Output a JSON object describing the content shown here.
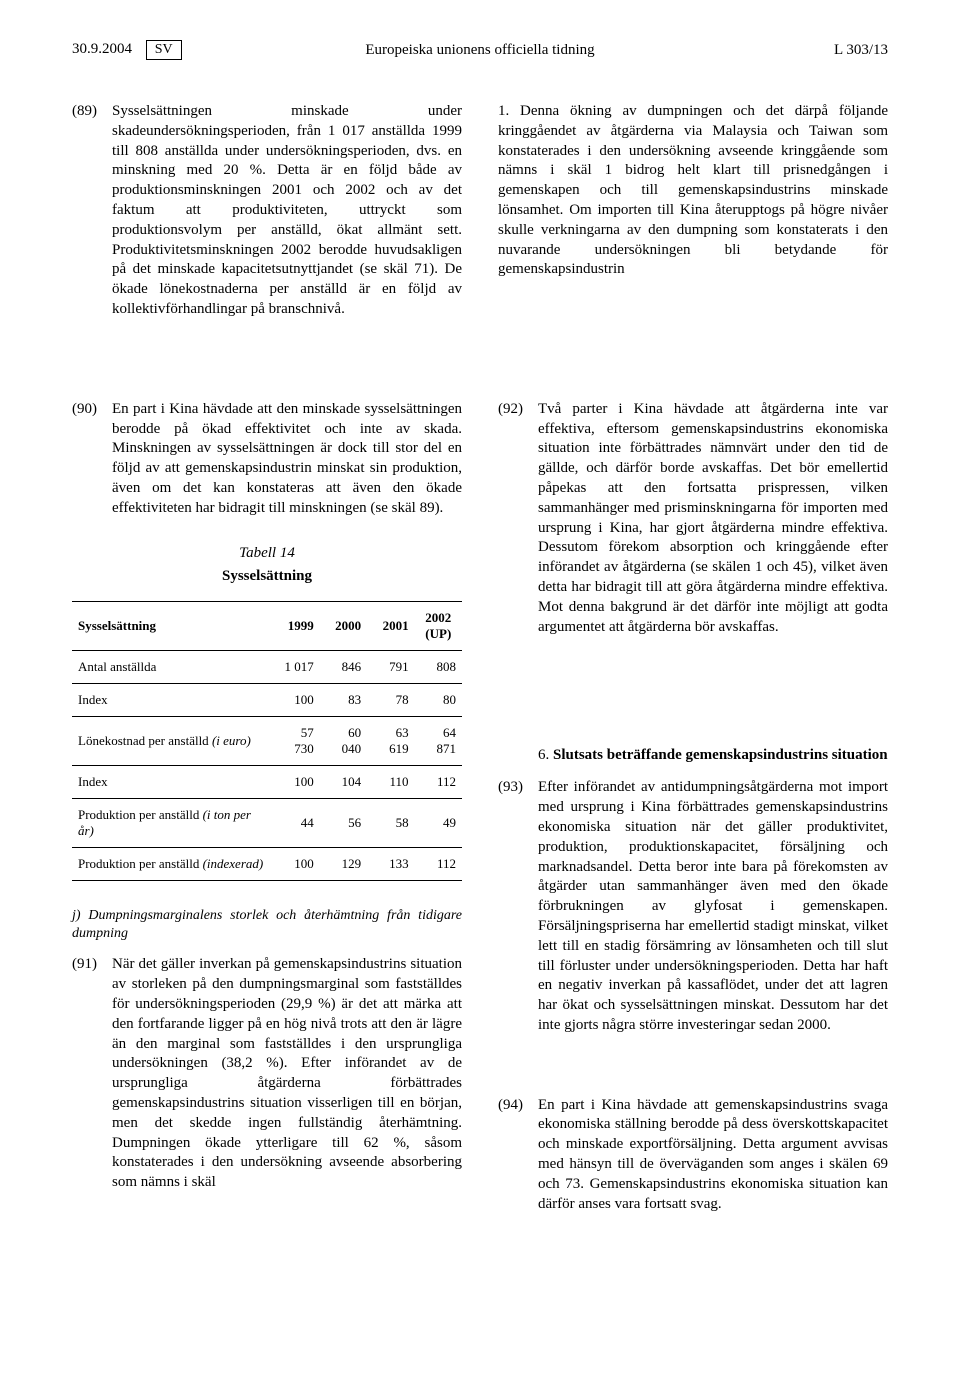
{
  "header": {
    "date": "30.9.2004",
    "lang": "SV",
    "center": "Europeiska unionens officiella tidning",
    "page_ref": "L 303/13"
  },
  "upper": {
    "left": {
      "num89": "(89)",
      "p89": "Sysselsättningen minskade under skadeundersökningsperioden, från 1 017 anställda 1999 till 808 anställda under undersökningsperioden, dvs. en minskning med 20 %. Detta är en följd både av produktionsminskningen 2001 och 2002 och av det faktum att produktiviteten, uttryckt som produktionsvolym per anställd, ökat allmänt sett. Produktivitetsminskningen 2002 berodde huvudsakligen på det minskade kapacitetsutnyttjandet (se skäl 71). De ökade lönekostnaderna per anställd är en följd av kollektivförhandlingar på branschnivå."
    },
    "right": {
      "p_cont": "1. Denna ökning av dumpningen och det därpå följande kringgåendet av åtgärderna via Malaysia och Taiwan som konstaterades i den undersökning avseende kringgående som nämns i skäl 1 bidrog helt klart till prisnedgången i gemenskapen och till gemenskapsindustrins minskade lönsamhet. Om importen till Kina återupptogs på högre nivåer skulle verkningarna av den dumpning som konstaterats i den nuvarande undersökningen bli betydande för gemenskapsindustrin"
    }
  },
  "lower": {
    "left": {
      "num90": "(90)",
      "p90": "En part i Kina hävdade att den minskade sysselsättningen berodde på ökad effektivitet och inte av skada. Minskningen av sysselsättningen är dock till stor del en följd av att gemenskapsindustrin minskat sin produktion, även om det kan konstateras att även den ökade effektiviteten har bidragit till minskningen (se skäl 89).",
      "table_title": "Tabell 14",
      "table_subtitle": "Sysselsättning",
      "table": {
        "headers": [
          "Sysselsättning",
          "1999",
          "2000",
          "2001",
          "2002 (UP)"
        ],
        "rows": [
          {
            "label": "Antal anställda",
            "c1": "1 017",
            "c2": "846",
            "c3": "791",
            "c4": "808"
          },
          {
            "label": "Index",
            "c1": "100",
            "c2": "83",
            "c3": "78",
            "c4": "80"
          },
          {
            "label_html": "Lönekostnad per anställd <span class=\"ital\">(i euro)</span>",
            "c1": "57 730",
            "c2": "60 040",
            "c3": "63 619",
            "c4": "64 871"
          },
          {
            "label": "Index",
            "c1": "100",
            "c2": "104",
            "c3": "110",
            "c4": "112"
          },
          {
            "label_html": "Produktion per anställd <span class=\"ital\">(i ton per år)</span>",
            "c1": "44",
            "c2": "56",
            "c3": "58",
            "c4": "49"
          },
          {
            "label_html": "Produktion per anställd <span class=\"ital\">(indexerad)</span>",
            "c1": "100",
            "c2": "129",
            "c3": "133",
            "c4": "112"
          }
        ]
      },
      "sect_j": "j) Dumpningsmarginalens storlek och återhämtning från tidigare dumpning",
      "num91": "(91)",
      "p91": "När det gäller inverkan på gemenskapsindustrins situation av storleken på den dumpningsmarginal som fastställdes för undersökningsperioden (29,9 %) är det att märka att den fortfarande ligger på en hög nivå trots att den är lägre än den marginal som fastställdes i den ursprungliga undersökningen (38,2 %). Efter införandet av de ursprungliga åtgärderna förbättrades gemenskapsindustrins situation visserligen till en början, men det skedde ingen fullständig återhämtning. Dumpningen ökade ytterligare till 62 %, såsom konstaterades i den undersökning avseende absorbering som nämns i skäl"
    },
    "right": {
      "num92": "(92)",
      "p92": "Två parter i Kina hävdade att åtgärderna inte var effektiva, eftersom gemenskapsindustrins ekonomiska situation inte förbättrades nämnvärt under den tid de gällde, och därför borde avskaffas. Det bör emellertid påpekas att den fortsatta prispressen, vilken sammanhänger med prisminskningarna för importen med ursprung i Kina, har gjort åtgärderna mindre effektiva. Dessutom förekom absorption och kringgående efter införandet av åtgärderna (se skälen 1 och 45), vilket även detta har bidragit till att göra åtgärderna mindre effektiva. Mot denna bakgrund är det därför inte möjligt att godta argumentet att åtgärderna bör avskaffas.",
      "sect6_num": "6.",
      "sect6_title": "Slutsats beträffande gemenskapsindustrins situation",
      "num93": "(93)",
      "p93": "Efter införandet av antidumpningsåtgärderna mot import med ursprung i Kina förbättrades gemenskapsindustrins ekonomiska situation när det gäller produktivitet, produktion, produktionskapacitet, försäljning och marknadsandel. Detta beror inte bara på förekomsten av åtgärder utan sammanhänger även med den ökade förbrukningen av glyfosat i gemenskapen. Försäljningspriserna har emellertid stadigt minskat, vilket lett till en stadig försämring av lönsamheten och till slut till förluster under undersökningsperioden. Detta har haft en negativ inverkan på kassaflödet, under det att lagren har ökat och sysselsättningen minskat. Dessutom har det inte gjorts några större investeringar sedan 2000.",
      "num94": "(94)",
      "p94": "En part i Kina hävdade att gemenskapsindustrins svaga ekonomiska ställning berodde på dess överskottskapacitet och minskade exportförsäljning. Detta argument avvisas med hänsyn till de överväganden som anges i skälen 69 och 73. Gemenskapsindustrins ekonomiska situation kan därför anses vara fortsatt svag."
    }
  }
}
